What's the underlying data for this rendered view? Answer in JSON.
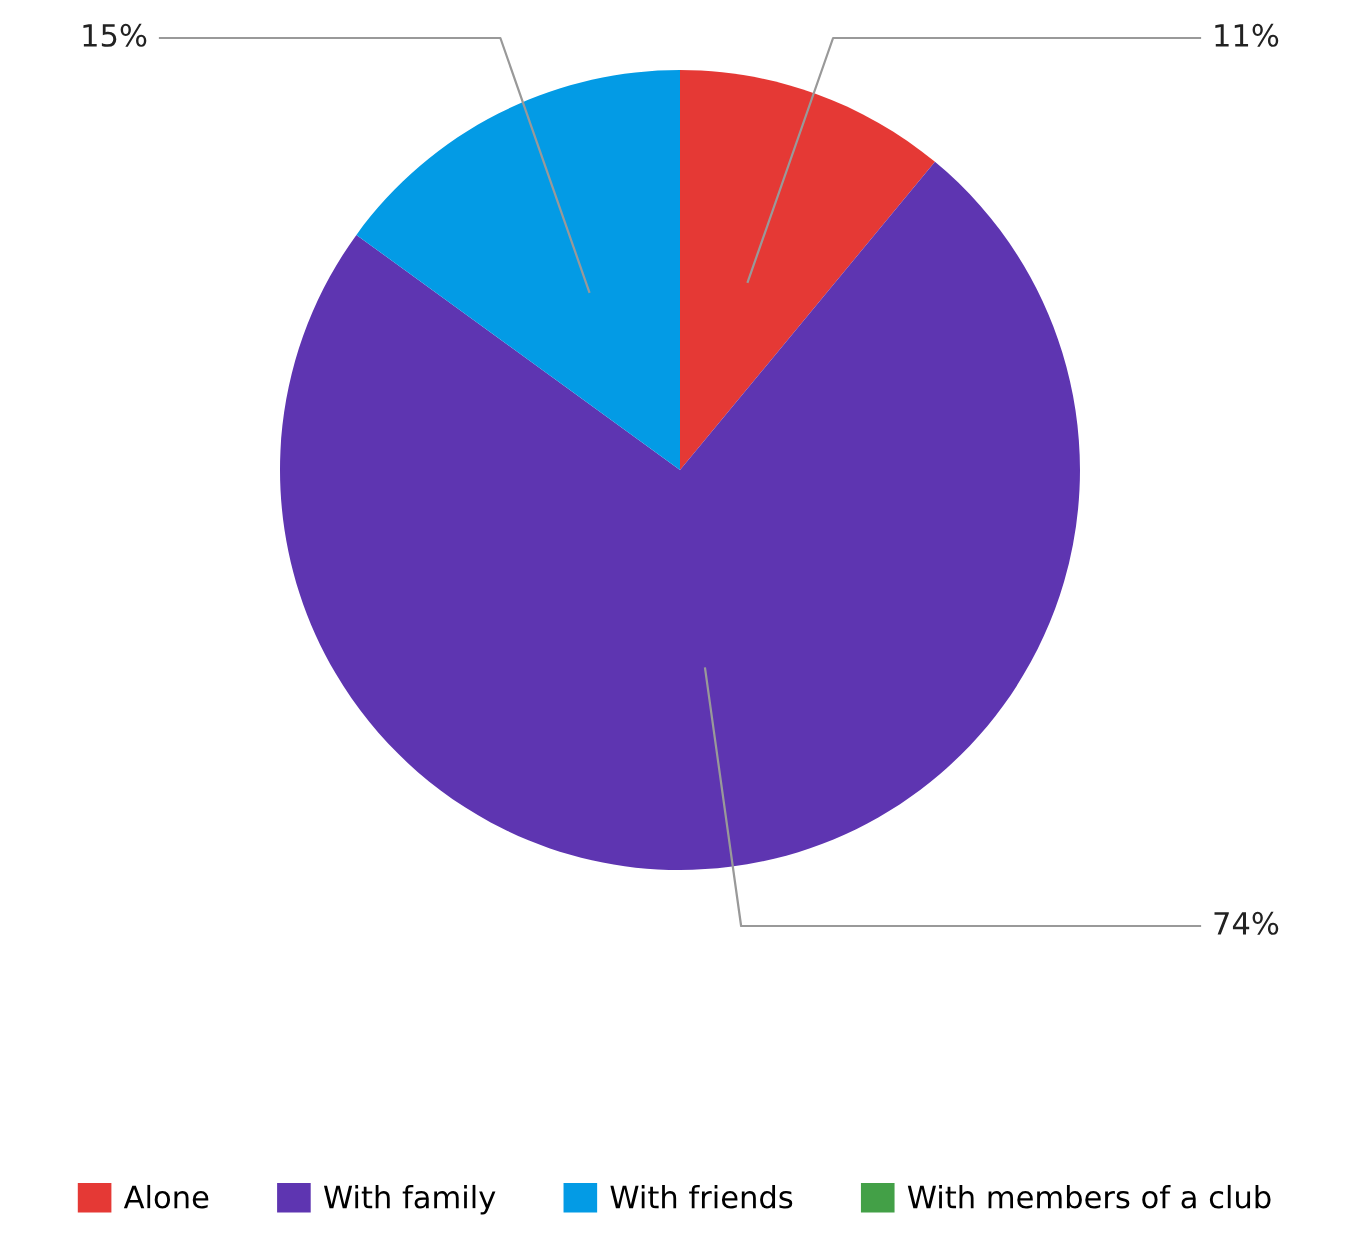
{
  "chart_data": {
    "type": "pie",
    "categories": [
      "Alone",
      "With family",
      "With friends",
      "With members of a club"
    ],
    "values": [
      11,
      74,
      15,
      0
    ],
    "colors": [
      "#e53935",
      "#5e35b1",
      "#039be5",
      "#43a047"
    ],
    "value_labels": [
      "11%",
      "74%",
      "15%",
      null
    ],
    "legend": "bottom"
  }
}
